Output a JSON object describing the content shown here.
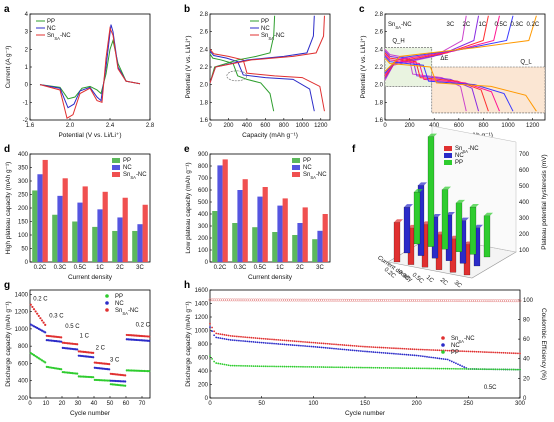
{
  "panels": [
    {
      "id": "a",
      "letter": "a",
      "type": "line",
      "xlabel": "Potential (V vs. Li/Li⁺)",
      "ylabel": "Current (A g⁻¹)",
      "xticks": [
        "1.6",
        "2.0",
        "2.4",
        "2.8"
      ],
      "yticks": [
        "-2",
        "-1",
        "0",
        "1",
        "2",
        "3",
        "4"
      ],
      "xlim": [
        1.6,
        2.8
      ],
      "ylim": [
        -2,
        4
      ],
      "legend": [
        {
          "name": "PP",
          "color": "#2e9e2e"
        },
        {
          "name": "NC",
          "color": "#2b2bc8"
        },
        {
          "name": "Sn_SA-NC",
          "color": "#e03030"
        }
      ]
    },
    {
      "id": "b",
      "letter": "b",
      "type": "line",
      "xlabel": "Capacity (mAh g⁻¹)",
      "ylabel": "Potential (V vs. Li/Li⁺)",
      "xticks": [
        "0",
        "200",
        "400",
        "600",
        "800",
        "1000",
        "1200"
      ],
      "yticks": [
        "1.6",
        "1.8",
        "2.0",
        "2.2",
        "2.4",
        "2.6",
        "2.8"
      ],
      "xlim": [
        0,
        1300
      ],
      "ylim": [
        1.6,
        2.8
      ],
      "legend": [
        {
          "name": "PP",
          "color": "#2e9e2e"
        },
        {
          "name": "NC",
          "color": "#2b2bc8"
        },
        {
          "name": "Sn_SA-NC",
          "color": "#e03030"
        }
      ]
    },
    {
      "id": "c",
      "letter": "c",
      "type": "line",
      "xlabel": "Capacity (mAh g⁻¹)",
      "ylabel": "Potential (V vs. Li/Li⁺)",
      "title": "Sn_SA-NC",
      "xticks": [
        "0",
        "200",
        "400",
        "600",
        "800",
        "1000",
        "1200"
      ],
      "yticks": [
        "1.6",
        "1.8",
        "2.0",
        "2.2",
        "2.4",
        "2.6",
        "2.8"
      ],
      "xlim": [
        0,
        1300
      ],
      "ylim": [
        1.6,
        2.8
      ],
      "rate_labels": [
        "3C",
        "2C",
        "1C",
        "0.5C",
        "0.3C",
        "0.2C"
      ],
      "annotations": [
        "Q_H",
        "Q_L",
        "ΔE"
      ]
    },
    {
      "id": "d",
      "letter": "d",
      "type": "bar",
      "xlabel": "Current density",
      "ylabel": "High plateau capacity (mAh g⁻¹)",
      "categories": [
        "0.2C",
        "0.3C",
        "0.5C",
        "1C",
        "2C",
        "3C"
      ],
      "yticks": [
        "0",
        "50",
        "100",
        "150",
        "200",
        "250",
        "300",
        "350",
        "400"
      ],
      "ylim": [
        0,
        400
      ]
    },
    {
      "id": "e",
      "letter": "e",
      "type": "bar",
      "xlabel": "Current density",
      "ylabel": "Low plateau capacity (mAh g⁻¹)",
      "categories": [
        "0.2C",
        "0.3C",
        "0.5C",
        "1C",
        "2C",
        "3C"
      ],
      "yticks": [
        "0",
        "100",
        "200",
        "300",
        "400",
        "500",
        "600",
        "700",
        "800",
        "900"
      ],
      "ylim": [
        0,
        900
      ]
    },
    {
      "id": "f",
      "letter": "f",
      "type": "bar3d",
      "zlabel": "Plateau potential hysteresis (mV)",
      "xlabel": "Current density",
      "zticks": [
        "100",
        "200",
        "300",
        "400",
        "500",
        "600",
        "700"
      ],
      "categories": [
        "0.2C",
        "0.3C",
        "0.5C",
        "1C",
        "2C",
        "3C"
      ],
      "legend": [
        {
          "name": "Sn_SA-NC",
          "color": "#e03030"
        },
        {
          "name": "NC",
          "color": "#2b2bc8"
        },
        {
          "name": "PP",
          "color": "#2ecc2e"
        }
      ]
    },
    {
      "id": "g",
      "letter": "g",
      "type": "scatter",
      "xlabel": "Cycle number",
      "ylabel": "Discharge capacity (mAh g⁻¹)",
      "xticks": [
        "0",
        "10",
        "20",
        "30",
        "40",
        "50",
        "60",
        "70"
      ],
      "yticks": [
        "200",
        "400",
        "600",
        "800",
        "1000",
        "1200",
        "1400"
      ],
      "xlim": [
        0,
        75
      ],
      "ylim": [
        200,
        1450
      ],
      "rate_labels": [
        "0.2 C",
        "0.3 C",
        "0.5 C",
        "1 C",
        "2 C",
        "3 C",
        "0.2 C"
      ],
      "legend": [
        {
          "name": "PP",
          "color": "#2ecc2e"
        },
        {
          "name": "NC",
          "color": "#2b2bc8"
        },
        {
          "name": "Sn_SA-NC",
          "color": "#e03030"
        }
      ]
    },
    {
      "id": "h",
      "letter": "h",
      "type": "scatter",
      "xlabel": "Cycle number",
      "ylabel": "Discharge capacity (mAh g⁻¹)",
      "y2label": "Coulombic Efficiency (%)",
      "xticks": [
        "0",
        "50",
        "100",
        "150",
        "200",
        "250",
        "300"
      ],
      "yticks": [
        "0",
        "200",
        "400",
        "600",
        "800",
        "1000",
        "1200",
        "1400",
        "1600"
      ],
      "y2ticks": [
        "0",
        "20",
        "40",
        "60",
        "80",
        "100"
      ],
      "xlim": [
        0,
        300
      ],
      "ylim": [
        0,
        1600
      ],
      "annotation": "0.5C",
      "legend": [
        {
          "name": "Sn_SA-NC",
          "color": "#e03030"
        },
        {
          "name": "NC",
          "color": "#2b2bc8"
        },
        {
          "name": "PP",
          "color": "#2ecc2e"
        }
      ]
    }
  ],
  "chart_data": [
    {
      "type": "line",
      "panel": "a",
      "title": "",
      "xlabel": "Potential (V vs. Li/Li⁺)",
      "ylabel": "Current (A g⁻¹)",
      "xlim": [
        1.6,
        2.8
      ],
      "ylim": [
        -2,
        4
      ],
      "series": [
        {
          "name": "PP",
          "x": [
            1.7,
            1.9,
            1.98,
            2.05,
            2.12,
            2.2,
            2.27,
            2.31,
            2.36,
            2.4,
            2.43,
            2.48,
            2.56,
            2.7
          ],
          "y": [
            0,
            -0.15,
            -0.8,
            -0.7,
            -0.2,
            -0.1,
            -0.3,
            -0.5,
            0.6,
            2.0,
            2.5,
            1.2,
            0.2,
            0.05
          ]
        },
        {
          "name": "NC",
          "x": [
            1.7,
            1.9,
            1.98,
            2.04,
            2.1,
            2.2,
            2.27,
            2.31,
            2.36,
            2.41,
            2.43,
            2.48,
            2.56,
            2.7
          ],
          "y": [
            0,
            -0.2,
            -1.3,
            -1.1,
            -0.35,
            -0.15,
            -0.7,
            -0.9,
            1.0,
            3.4,
            3.0,
            1.0,
            0.2,
            0.05
          ]
        },
        {
          "name": "Sn_SA-NC",
          "x": [
            1.7,
            1.9,
            1.97,
            2.03,
            2.1,
            2.2,
            2.27,
            2.32,
            2.36,
            2.4,
            2.43,
            2.48,
            2.56,
            2.7
          ],
          "y": [
            0,
            -0.3,
            -1.9,
            -1.7,
            -0.5,
            -0.2,
            -0.9,
            -1.0,
            1.5,
            3.2,
            2.8,
            0.9,
            0.2,
            0.05
          ]
        }
      ]
    },
    {
      "type": "line",
      "panel": "b",
      "title": "",
      "xlabel": "Capacity (mAh g⁻¹)",
      "ylabel": "Potential (V vs. Li/Li⁺)",
      "xlim": [
        0,
        1300
      ],
      "ylim": [
        1.6,
        2.8
      ],
      "series": [
        {
          "name": "PP",
          "x": [
            0,
            30,
            120,
            250,
            300,
            400,
            550,
            650,
            690
          ],
          "y": [
            2.35,
            2.3,
            2.28,
            2.24,
            2.1,
            2.06,
            2.02,
            1.9,
            1.7
          ]
        },
        {
          "name": "NC",
          "x": [
            0,
            40,
            180,
            300,
            360,
            600,
            900,
            1080,
            1130
          ],
          "y": [
            2.38,
            2.33,
            2.3,
            2.26,
            2.11,
            2.08,
            2.06,
            1.95,
            1.7
          ]
        },
        {
          "name": "Sn_SA-NC",
          "x": [
            0,
            40,
            200,
            360,
            400,
            700,
            1000,
            1190,
            1240
          ],
          "y": [
            2.4,
            2.35,
            2.32,
            2.28,
            2.13,
            2.1,
            2.08,
            1.98,
            1.7
          ]
        }
      ]
    },
    {
      "type": "line",
      "panel": "c",
      "title": "Sn_SA-NC",
      "xlabel": "Capacity (mAh g⁻¹)",
      "ylabel": "Potential (V vs. Li/Li⁺)",
      "xlim": [
        0,
        1300
      ],
      "ylim": [
        1.6,
        2.8
      ],
      "series": [
        {
          "name": "3C",
          "color": "#cc44cc",
          "capacity": 660
        },
        {
          "name": "2C",
          "color": "#8a2be2",
          "capacity": 760
        },
        {
          "name": "1C",
          "color": "#ff3030",
          "capacity": 840
        },
        {
          "name": "0.5C",
          "color": "#ff1493",
          "capacity": 930
        },
        {
          "name": "0.3C",
          "color": "#3a3aff",
          "capacity": 1040
        },
        {
          "name": "0.2C",
          "color": "#ff9900",
          "capacity": 1230
        }
      ]
    },
    {
      "type": "bar",
      "panel": "d",
      "title": "",
      "xlabel": "Current density",
      "ylabel": "High plateau capacity (mAh g⁻¹)",
      "ylim": [
        0,
        400
      ],
      "categories": [
        "0.2C",
        "0.3C",
        "0.5C",
        "1C",
        "2C",
        "3C"
      ],
      "series": [
        {
          "name": "PP",
          "color": "#5cb85c",
          "values": [
            265,
            175,
            150,
            130,
            115,
            115
          ]
        },
        {
          "name": "NC",
          "color": "#5555e0",
          "values": [
            325,
            245,
            220,
            195,
            165,
            140
          ]
        },
        {
          "name": "Sn_SA-NC",
          "color": "#f05050",
          "values": [
            378,
            310,
            280,
            260,
            238,
            212
          ]
        }
      ]
    },
    {
      "type": "bar",
      "panel": "e",
      "title": "",
      "xlabel": "Current density",
      "ylabel": "Low plateau capacity (mAh g⁻¹)",
      "ylim": [
        0,
        900
      ],
      "categories": [
        "0.2C",
        "0.3C",
        "0.5C",
        "1C",
        "2C",
        "3C"
      ],
      "series": [
        {
          "name": "PP",
          "color": "#5cb85c",
          "values": [
            425,
            325,
            290,
            250,
            225,
            190
          ]
        },
        {
          "name": "NC",
          "color": "#5555e0",
          "values": [
            805,
            600,
            545,
            470,
            325,
            260
          ]
        },
        {
          "name": "Sn_SA-NC",
          "color": "#f05050",
          "values": [
            855,
            690,
            625,
            530,
            455,
            400
          ]
        }
      ]
    },
    {
      "type": "bar",
      "panel": "f",
      "title": "",
      "xlabel": "Current density",
      "ylabel": "Plateau potential hysteresis (mV)",
      "categories": [
        "0.2C",
        "0.3C",
        "0.5C",
        "1C",
        "2C",
        "3C"
      ],
      "series": [
        {
          "name": "Sn_SA-NC",
          "color": "#e03030",
          "values": [
            260,
            240,
            280,
            230,
            220,
            200
          ]
        },
        {
          "name": "NC",
          "color": "#2b2bc8",
          "values": [
            300,
            460,
            270,
            300,
            280,
            250
          ]
        },
        {
          "name": "PP",
          "color": "#2ecc2e",
          "values": [
            340,
            720,
            390,
            320,
            310,
            270
          ]
        }
      ]
    },
    {
      "type": "scatter",
      "panel": "g",
      "title": "",
      "xlabel": "Cycle number",
      "ylabel": "Discharge capacity (mAh g⁻¹)",
      "xlim": [
        0,
        75
      ],
      "ylim": [
        200,
        1450
      ],
      "series": [
        {
          "name": "PP",
          "color": "#2ecc2e",
          "segments": [
            [
              0,
              10,
              720,
              600
            ],
            [
              10,
              20,
              560,
              530
            ],
            [
              20,
              30,
              500,
              480
            ],
            [
              30,
              40,
              450,
              440
            ],
            [
              40,
              50,
              410,
              400
            ],
            [
              50,
              60,
              360,
              340
            ],
            [
              60,
              75,
              520,
              510
            ]
          ]
        },
        {
          "name": "NC",
          "color": "#2b2bc8",
          "segments": [
            [
              0,
              10,
              1050,
              950
            ],
            [
              10,
              20,
              870,
              850
            ],
            [
              20,
              30,
              780,
              760
            ],
            [
              30,
              40,
              690,
              670
            ],
            [
              40,
              50,
              550,
              530
            ],
            [
              50,
              60,
              400,
              390
            ],
            [
              60,
              75,
              880,
              860
            ]
          ]
        },
        {
          "name": "Sn_SA-NC",
          "color": "#e03030",
          "segments": [
            [
              0,
              10,
              1280,
              1020
            ],
            [
              10,
              20,
              920,
              900
            ],
            [
              20,
              30,
              840,
              820
            ],
            [
              30,
              40,
              740,
              720
            ],
            [
              40,
              50,
              610,
              590
            ],
            [
              50,
              60,
              480,
              460
            ],
            [
              60,
              75,
              930,
              910
            ]
          ]
        }
      ]
    },
    {
      "type": "scatter",
      "panel": "h",
      "title": "",
      "xlabel": "Cycle number",
      "ylabel": "Discharge capacity (mAh g⁻¹)",
      "xlim": [
        0,
        300
      ],
      "ylim": [
        0,
        1600
      ],
      "series": [
        {
          "name": "Sn_SA-NC",
          "color": "#e03030",
          "x": [
            0,
            5,
            20,
            50,
            100,
            150,
            200,
            250,
            300
          ],
          "y": [
            1100,
            960,
            920,
            880,
            820,
            760,
            720,
            690,
            660
          ]
        },
        {
          "name": "NC",
          "color": "#2b2bc8",
          "x": [
            0,
            5,
            20,
            50,
            100,
            150,
            200,
            230,
            250,
            300
          ],
          "y": [
            1050,
            900,
            860,
            820,
            760,
            690,
            630,
            570,
            430,
            420
          ]
        },
        {
          "name": "PP",
          "color": "#2ecc2e",
          "x": [
            0,
            5,
            20,
            50,
            100,
            150,
            200,
            250,
            300
          ],
          "y": [
            620,
            520,
            480,
            470,
            460,
            450,
            440,
            430,
            420
          ]
        },
        {
          "name": "Coulombic Efficiency",
          "color": "#e07070",
          "axis": "right",
          "x": [
            0,
            300
          ],
          "y": [
            100,
            99
          ]
        }
      ]
    }
  ]
}
